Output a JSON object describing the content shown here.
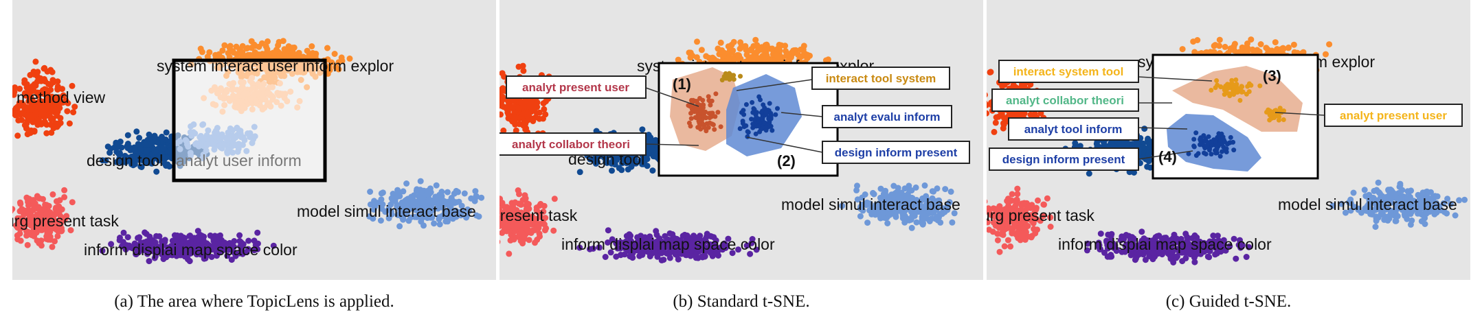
{
  "colors": {
    "background": "#e5e5e5",
    "red_orange": "#f04010",
    "orange": "#fb8d2e",
    "light_orange": "#fdb27a",
    "dark_blue": "#114a92",
    "light_blue": "#6e98d8",
    "purple": "#5a24a2",
    "salmon": "#f45a5a",
    "lens_orange": "#e6ad8e",
    "lens_blue": "#5f89d4",
    "label_red": "#b3374a",
    "label_gold": "#c98a12",
    "label_blue": "#1e3fa6",
    "label_green": "#52b788",
    "label_yellow": "#f4b41a"
  },
  "topic_labels": {
    "system": "system interact user inform explor",
    "method": "method view",
    "design": "design tool",
    "analyt_user": "analyt user inform",
    "model": "model simul interact base",
    "present": "present task",
    "present_a": "urg present task",
    "present_c": "urg present task",
    "inform": "inform displai map space color"
  },
  "panels": [
    {
      "caption": "(a) The area where TopicLens is applied."
    },
    {
      "caption": "(b) Standard t-SNE.",
      "markers": [
        "(1)",
        "(2)"
      ],
      "callouts": [
        {
          "text": "analyt present user",
          "color": "#b3374a"
        },
        {
          "text": "analyt collabor theori",
          "color": "#b3374a"
        },
        {
          "text": "interact tool system",
          "color": "#c98a12"
        },
        {
          "text": "analyt evalu inform",
          "color": "#1e3fa6"
        },
        {
          "text": "design inform present",
          "color": "#1e3fa6"
        }
      ]
    },
    {
      "caption": "(c) Guided t-SNE.",
      "markers": [
        "(3)",
        "(4)"
      ],
      "callouts": [
        {
          "text": "interact system tool",
          "color": "#f4b41a"
        },
        {
          "text": "analyt collabor theori",
          "color": "#52b788"
        },
        {
          "text": "analyt tool inform",
          "color": "#1e3fa6"
        },
        {
          "text": "design inform present",
          "color": "#1e3fa6"
        },
        {
          "text": "analyt present user",
          "color": "#f4b41a"
        }
      ]
    }
  ]
}
